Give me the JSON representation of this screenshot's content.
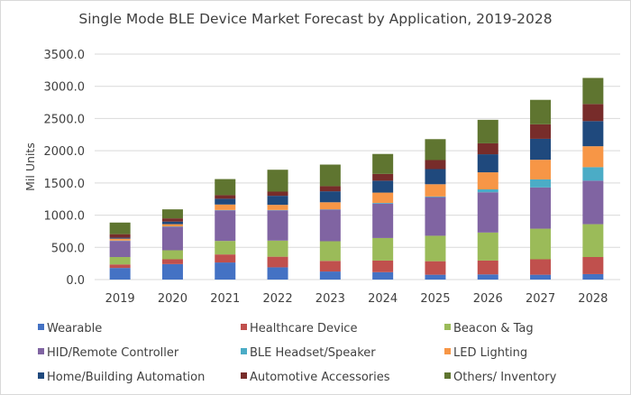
{
  "chart_data": {
    "type": "bar",
    "stacked": true,
    "title": "Single Mode BLE Device Market Forecast by Application, 2019-2028",
    "xlabel": "",
    "ylabel": "Mil Units",
    "ylim": [
      0,
      3500
    ],
    "yticks": [
      0,
      500,
      1000,
      1500,
      2000,
      2500,
      3000,
      3500
    ],
    "ytick_labels": [
      "0.0",
      "500.0",
      "1000.0",
      "1500.0",
      "2000.0",
      "2500.0",
      "3000.0",
      "3500.0"
    ],
    "grid": true,
    "legend_position": "bottom",
    "categories": [
      "2019",
      "2020",
      "2021",
      "2022",
      "2023",
      "2024",
      "2025",
      "2026",
      "2027",
      "2028"
    ],
    "series": [
      {
        "name": "Wearable",
        "color": "#4472C4",
        "values": [
          180,
          240,
          265,
          190,
          125,
          115,
          75,
          80,
          75,
          85
        ]
      },
      {
        "name": "Healthcare Device",
        "color": "#C0504D",
        "values": [
          55,
          75,
          125,
          165,
          165,
          180,
          210,
          215,
          240,
          265
        ]
      },
      {
        "name": "Beacon & Tag",
        "color": "#9BBB59",
        "values": [
          115,
          140,
          210,
          250,
          305,
          350,
          395,
          435,
          475,
          510
        ]
      },
      {
        "name": "HID/Remote Controller",
        "color": "#8064A2",
        "values": [
          250,
          365,
          475,
          470,
          490,
          535,
          600,
          625,
          640,
          675
        ]
      },
      {
        "name": "BLE Headset/Speaker",
        "color": "#4BACC6",
        "values": [
          5,
          5,
          5,
          5,
          5,
          10,
          10,
          45,
          125,
          210
        ]
      },
      {
        "name": "LED Lighting",
        "color": "#F79646",
        "values": [
          30,
          35,
          85,
          80,
          110,
          160,
          190,
          265,
          305,
          325
        ]
      },
      {
        "name": "Home/Building Automation",
        "color": "#1F497D",
        "values": [
          15,
          40,
          90,
          140,
          170,
          185,
          235,
          280,
          325,
          390
        ]
      },
      {
        "name": "Automotive Accessories",
        "color": "#772C2A",
        "values": [
          55,
          50,
          55,
          65,
          80,
          105,
          140,
          170,
          225,
          265
        ]
      },
      {
        "name": "Others/ Inventory",
        "color": "#5F7530",
        "values": [
          180,
          140,
          250,
          340,
          335,
          310,
          325,
          365,
          380,
          405
        ]
      }
    ]
  }
}
